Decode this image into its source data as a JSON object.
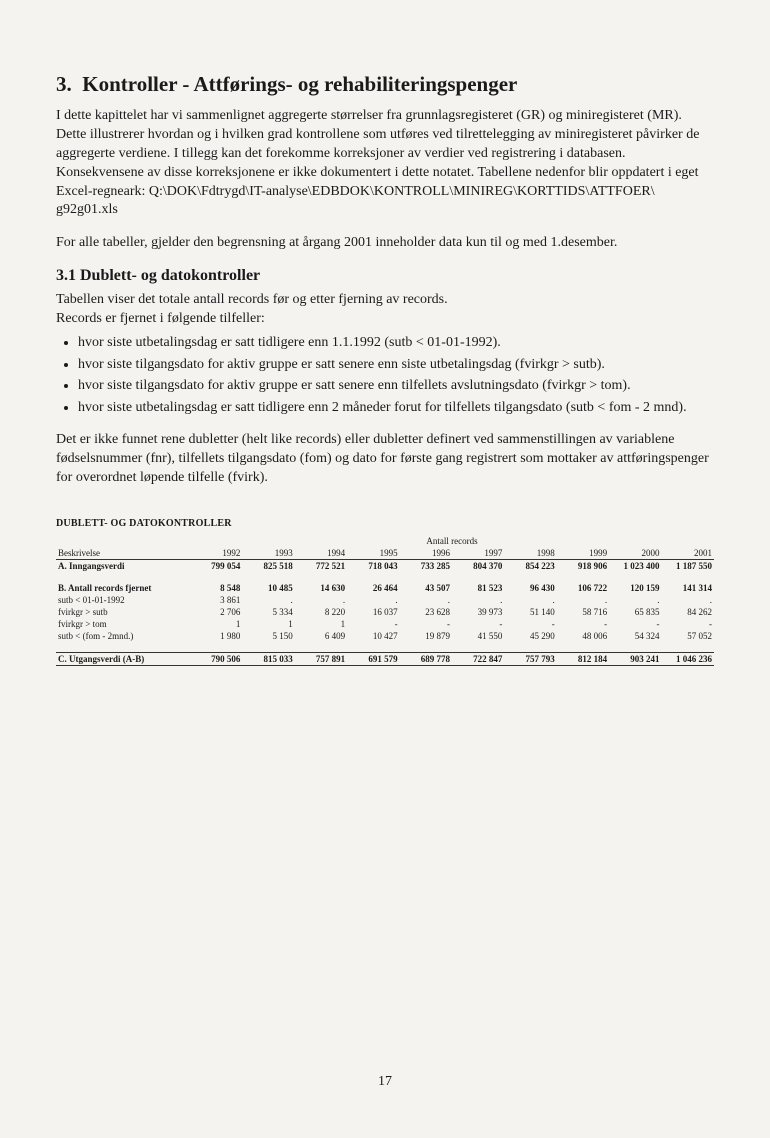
{
  "section": {
    "number": "3.",
    "title": "Kontroller - Attførings- og rehabiliteringspenger",
    "intro1": "I dette kapittelet har vi sammenlignet aggregerte størrelser fra grunnlagsregisteret (GR) og miniregisteret (MR). Dette illustrerer hvordan og i hvilken grad kontrollene som utføres ved tilrettelegging av miniregisteret påvirker de aggregerte verdiene. I tillegg kan det forekomme korreksjoner av verdier ved registrering i databasen. Konsekvensene av disse korreksjonene er ikke dokumentert i dette notatet. Tabellene nedenfor blir oppdatert i eget Excel-regneark: Q:\\DOK\\Fdtrygd\\IT-analyse\\EDBDOK\\KONTROLL\\MINIREG\\KORTTIDS\\ATTFOER\\ g92g01.xls",
    "intro2": "For alle tabeller, gjelder den begrensning at årgang 2001 inneholder data kun til og med 1.desember."
  },
  "sub31": {
    "title": "3.1 Dublett- og datokontroller",
    "p1": "Tabellen viser det totale antall records før og etter fjerning av records.",
    "p2": "Records er fjernet i følgende tilfeller:",
    "bullets": [
      "hvor siste utbetalingsdag er satt tidligere enn 1.1.1992 (sutb < 01-01-1992).",
      "hvor siste tilgangsdato for aktiv gruppe er satt senere enn siste utbetalingsdag (fvirkgr > sutb).",
      "hvor siste tilgangsdato for aktiv gruppe er satt senere enn tilfellets avslutningsdato (fvirkgr > tom).",
      "hvor siste utbetalingsdag er satt tidligere enn 2 måneder forut for tilfellets tilgangsdato (sutb < fom - 2 mnd)."
    ],
    "p3": "Det er ikke funnet rene dubletter (helt like records) eller dubletter definert ved sammenstillingen av variablene fødselsnummer (fnr), tilfellets tilgangsdato (fom) og dato for første gang registrert som mottaker av attføringspenger for overordnet løpende tilfelle (fvirk)."
  },
  "table": {
    "title": "DUBLETT- OG DATOKONTROLLER",
    "super_header": "Antall records",
    "desc_header": "Beskrivelse",
    "years": [
      "1992",
      "1993",
      "1994",
      "1995",
      "1996",
      "1997",
      "1998",
      "1999",
      "2000",
      "2001"
    ],
    "rows": [
      {
        "label": "A. Inngangsverdi",
        "bold": true,
        "vals": [
          "799 054",
          "825 518",
          "772 521",
          "718 043",
          "733 285",
          "804 370",
          "854 223",
          "918 906",
          "1 023 400",
          "1 187 550"
        ]
      },
      {
        "spacer": true
      },
      {
        "label": "B. Antall records fjernet",
        "bold": true,
        "vals": [
          "8 548",
          "10 485",
          "14 630",
          "26 464",
          "43 507",
          "81 523",
          "96 430",
          "106 722",
          "120 159",
          "141 314"
        ]
      },
      {
        "label": "sutb < 01-01-1992",
        "vals": [
          "3 861",
          ".",
          ".",
          ".",
          ".",
          ".",
          ".",
          ".",
          ".",
          "."
        ]
      },
      {
        "label": "fvirkgr > sutb",
        "vals": [
          "2 706",
          "5 334",
          "8 220",
          "16 037",
          "23 628",
          "39 973",
          "51 140",
          "58 716",
          "65 835",
          "84 262"
        ]
      },
      {
        "label": "fvirkgr > tom",
        "vals": [
          "1",
          "1",
          "1",
          "-",
          "-",
          "-",
          "-",
          "-",
          "-",
          "-"
        ]
      },
      {
        "label": "sutb < (fom - 2mnd.)",
        "vals": [
          "1 980",
          "5 150",
          "6 409",
          "10 427",
          "19 879",
          "41 550",
          "45 290",
          "48 006",
          "54 324",
          "57 052"
        ]
      },
      {
        "spacer": true
      },
      {
        "label": "C. Utgangsverdi (A-B)",
        "bold": true,
        "rule": true,
        "vals": [
          "790 506",
          "815 033",
          "757 891",
          "691 579",
          "689 778",
          "722 847",
          "757 793",
          "812 184",
          "903 241",
          "1 046 236"
        ]
      }
    ]
  },
  "page_number": "17"
}
